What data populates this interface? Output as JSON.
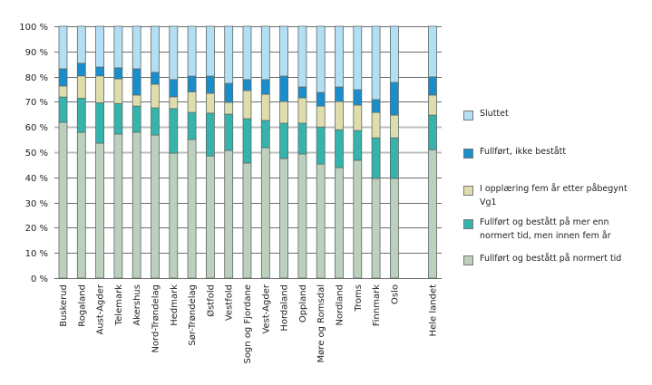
{
  "chart_data": {
    "type": "bar",
    "stacked": true,
    "percent": true,
    "title": "",
    "xlabel": "",
    "ylabel": "",
    "ylim": [
      0,
      100
    ],
    "yticks": [
      "0 %",
      "10 %",
      "20 %",
      "30 %",
      "40 %",
      "50 %",
      "60 %",
      "70 %",
      "80 %",
      "90 %",
      "100 %"
    ],
    "grid": true,
    "legend_position": "right",
    "categories": [
      "Buskerud",
      "Rogaland",
      "Aust-Agder",
      "Telemark",
      "Akershus",
      "Nord-Trøndelag",
      "Hedmark",
      "Sør-Trøndelag",
      "Østfold",
      "Vestfold",
      "Sogn og Fjordane",
      "Vest-Agder",
      "Hordaland",
      "Oppland",
      "Møre og Romsdal",
      "Nordland",
      "Troms",
      "Finnmark",
      "Oslo",
      "Hele landet"
    ],
    "series": [
      {
        "name": "Fullført og bestått på normert tid",
        "color": "#bcd0bd",
        "values": [
          61.9,
          57.9,
          53.6,
          57.2,
          57.9,
          56.8,
          49.6,
          55.0,
          48.5,
          50.7,
          45.7,
          51.8,
          47.5,
          49.3,
          45.3,
          43.9,
          46.8,
          39.6,
          39.6,
          51.0
        ]
      },
      {
        "name": "Fullført og bestått på mer enn normert tid, men innen fem år",
        "color": "#36b3ac",
        "values": [
          10.0,
          13.5,
          16.0,
          12.1,
          10.4,
          10.8,
          17.7,
          10.8,
          17.0,
          14.4,
          17.6,
          10.8,
          14.0,
          12.2,
          14.7,
          15.0,
          11.8,
          16.1,
          16.1,
          13.7
        ]
      },
      {
        "name": "I opplæring fem år etter påbegynt Vg1",
        "color": "#e0ddad",
        "values": [
          4.4,
          8.9,
          10.7,
          9.8,
          4.4,
          9.4,
          4.7,
          8.2,
          7.9,
          4.7,
          11.2,
          10.4,
          8.6,
          10.1,
          8.3,
          11.2,
          10.1,
          10.1,
          9.0,
          8.0
        ]
      },
      {
        "name": "Fullført, ikke bestått",
        "color": "#1a8ecb",
        "values": [
          6.8,
          5.0,
          3.5,
          4.4,
          10.4,
          4.7,
          6.8,
          6.2,
          6.8,
          7.5,
          4.3,
          5.8,
          10.1,
          4.3,
          5.4,
          5.8,
          6.1,
          5.1,
          13.0,
          7.2
        ]
      },
      {
        "name": "Sluttet",
        "color": "#b3def4",
        "values": [
          16.9,
          14.7,
          16.2,
          16.5,
          16.9,
          18.3,
          21.2,
          19.8,
          19.8,
          22.7,
          21.2,
          21.2,
          19.8,
          24.1,
          26.3,
          24.1,
          25.2,
          29.1,
          22.3,
          20.1
        ]
      }
    ],
    "legend_order": [
      "Sluttet",
      "Fullført, ikke bestått",
      "I opplæring fem år etter påbegynt Vg1",
      "Fullført og bestått på mer enn normert tid, men innen fem år",
      "Fullført og bestått på normert tid"
    ]
  },
  "legend": {
    "items": [
      {
        "label": "Sluttet",
        "color": "#b3def4"
      },
      {
        "label": "Fullført, ikke bestått",
        "color": "#1a8ecb"
      },
      {
        "label": "I opplæring fem år etter påbegynt Vg1",
        "color": "#e0ddad"
      },
      {
        "label": "Fullført og bestått på mer enn normert tid, men innen fem år",
        "color": "#36b3ac"
      },
      {
        "label": "Fullført og bestått på normert tid",
        "color": "#bcd0bd"
      }
    ]
  }
}
